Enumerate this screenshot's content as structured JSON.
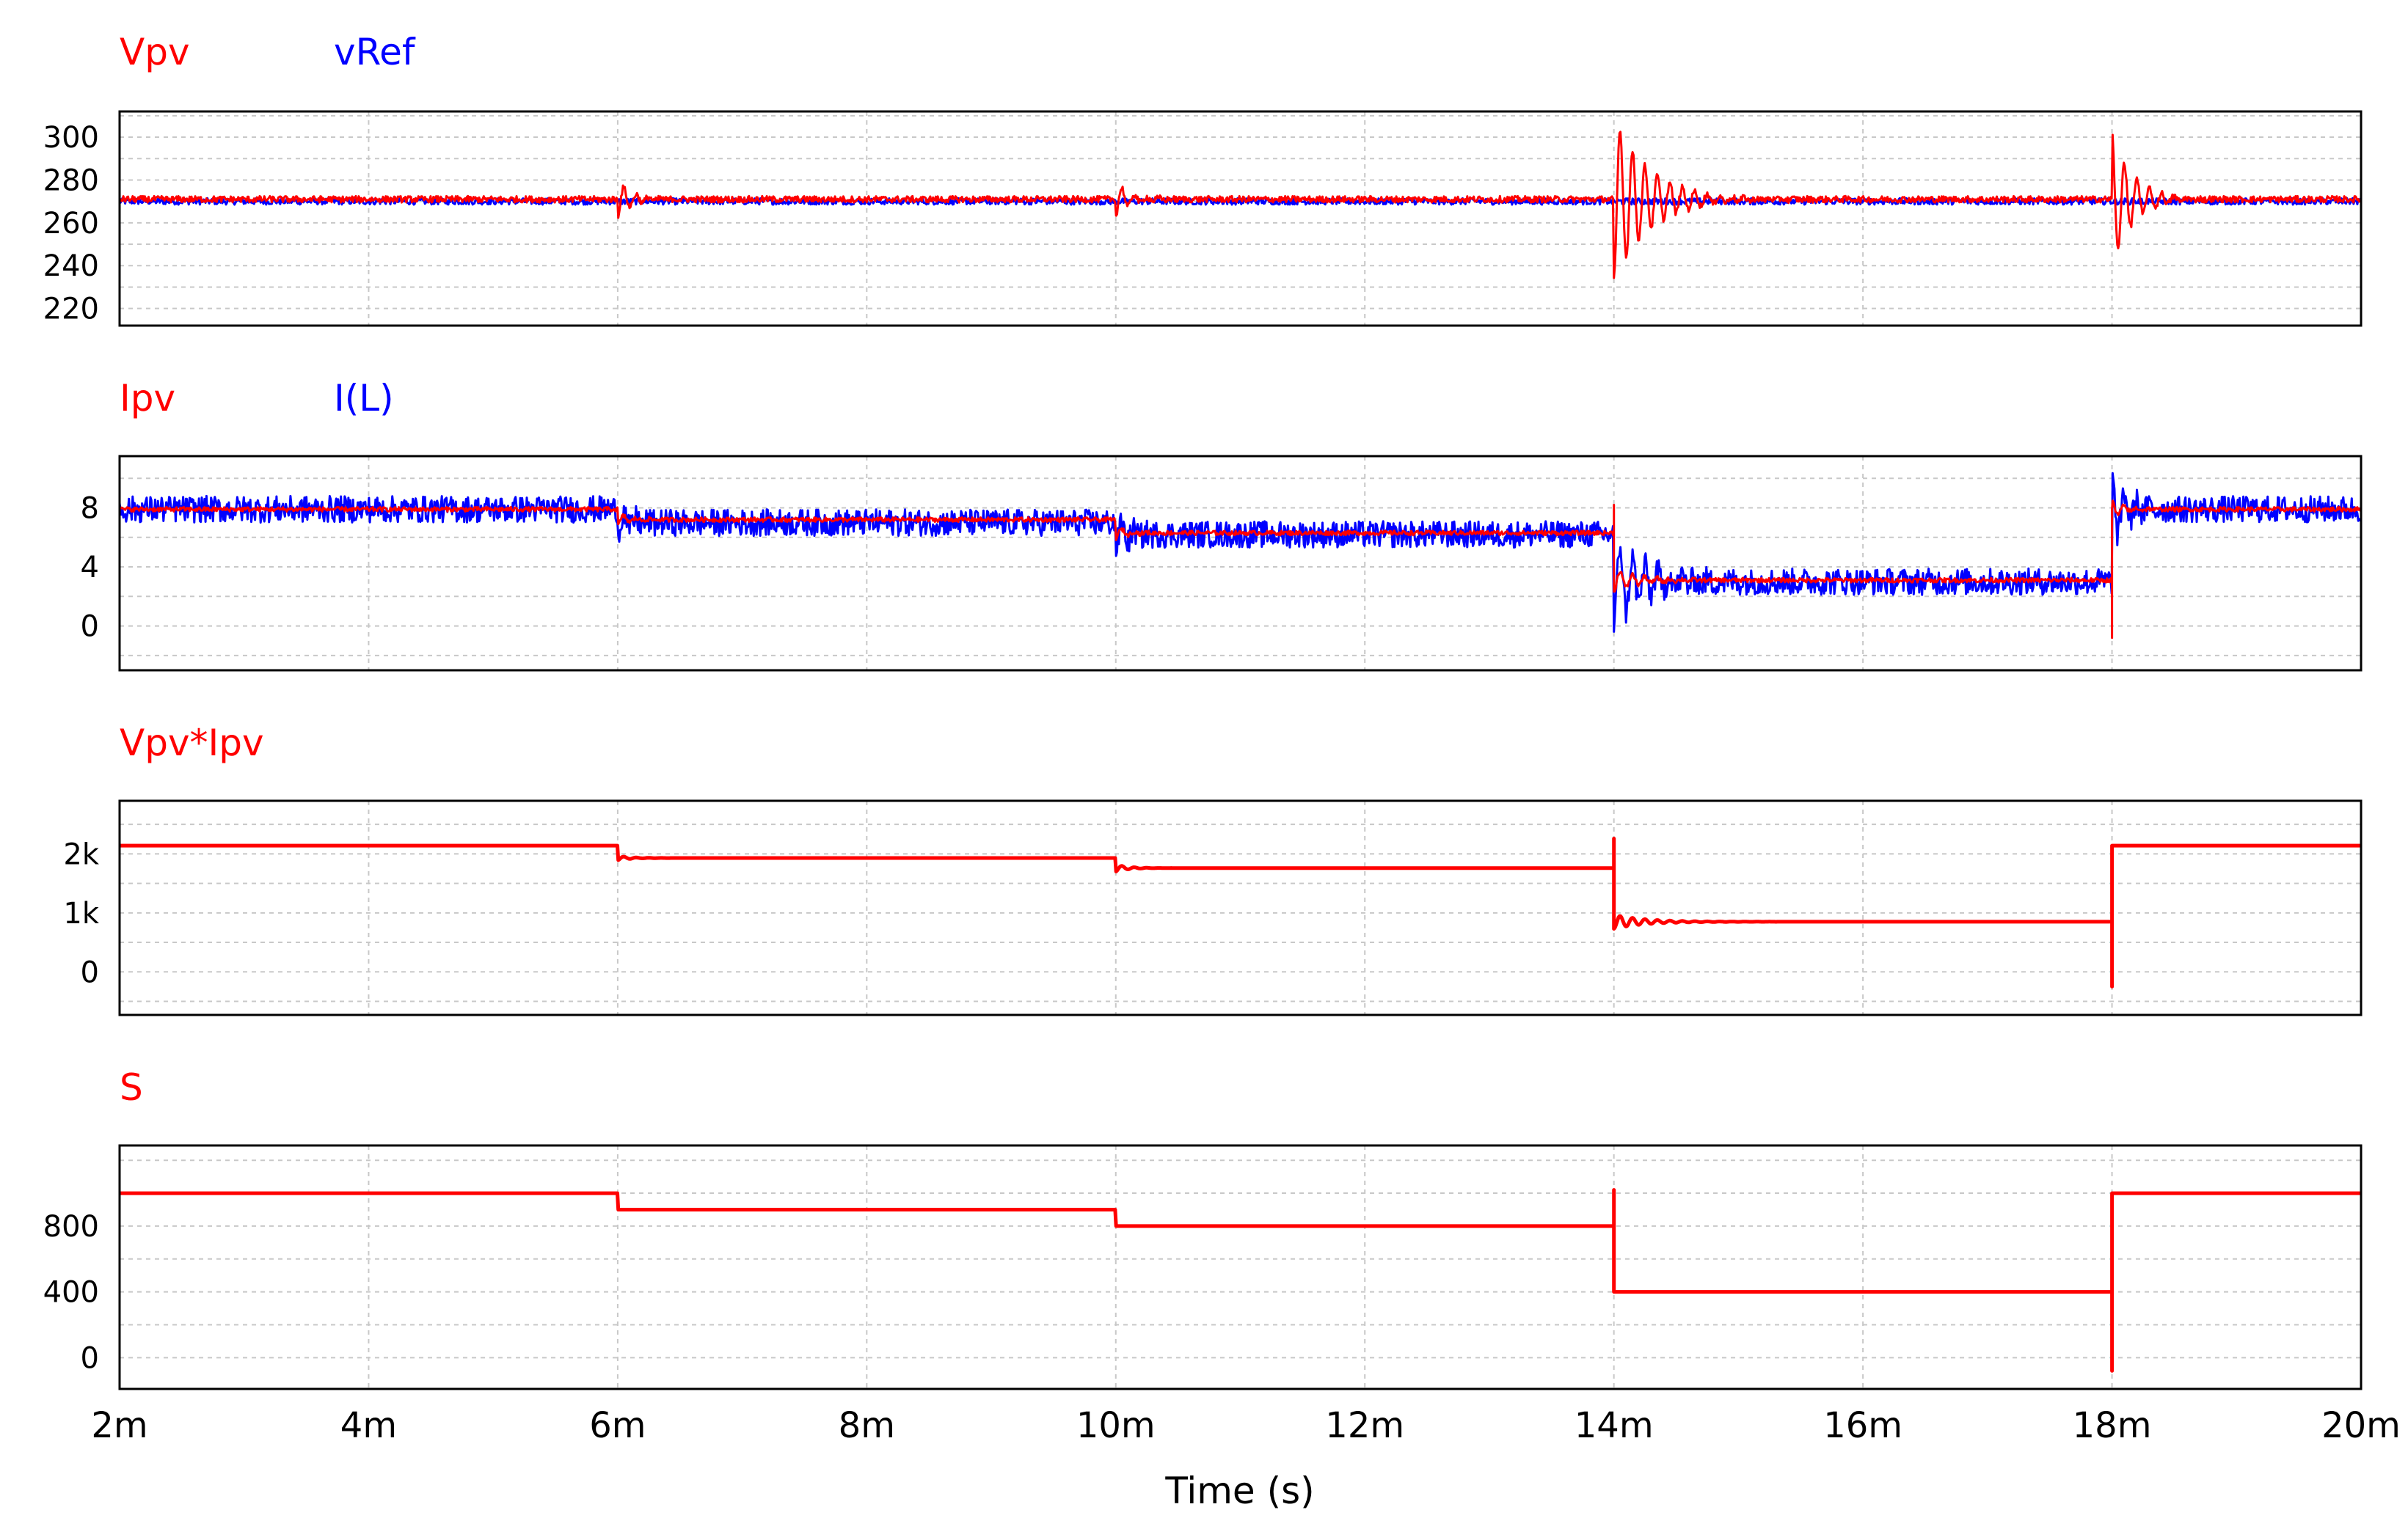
{
  "chart_data": {
    "type": "line",
    "xlabel": "Time (s)",
    "xlim": [
      0.002,
      0.02
    ],
    "xticks": [
      {
        "v": 0.002,
        "label": "2m"
      },
      {
        "v": 0.004,
        "label": "4m"
      },
      {
        "v": 0.006,
        "label": "6m"
      },
      {
        "v": 0.008,
        "label": "8m"
      },
      {
        "v": 0.01,
        "label": "10m"
      },
      {
        "v": 0.012,
        "label": "12m"
      },
      {
        "v": 0.014,
        "label": "14m"
      },
      {
        "v": 0.016,
        "label": "16m"
      },
      {
        "v": 0.018,
        "label": "18m"
      },
      {
        "v": 0.02,
        "label": "20m"
      }
    ],
    "grid": true,
    "panels": [
      {
        "id": "voltage",
        "legend": [
          {
            "name": "Vpv",
            "color": "#ff0000"
          },
          {
            "name": "vRef",
            "color": "#0000ff"
          }
        ],
        "ylim": [
          212,
          312
        ],
        "yticks": [
          {
            "v": 300,
            "label": "300"
          },
          {
            "v": 280,
            "label": "280"
          },
          {
            "v": 260,
            "label": "260"
          },
          {
            "v": 240,
            "label": "240"
          },
          {
            "v": 220,
            "label": "220"
          }
        ],
        "series": [
          {
            "name": "vRef",
            "color": "#0000ff",
            "style": "ripple",
            "amp": 1.5,
            "base": [
              [
                0.002,
                270
              ],
              [
                0.02,
                270
              ]
            ]
          },
          {
            "name": "Vpv",
            "color": "#ff0000",
            "style": "ripple",
            "amp": 1.5,
            "base": [
              [
                0.002,
                271
              ],
              [
                0.02,
                271
              ]
            ],
            "transients": [
              {
                "t": 0.006,
                "amp": -8,
                "tau": 0.00012,
                "period": 0.0001
              },
              {
                "t": 0.01,
                "amp": -8,
                "tau": 0.00012,
                "period": 0.0001
              },
              {
                "t": 0.014,
                "amp": -38,
                "tau": 0.00028,
                "period": 0.0001
              },
              {
                "t": 0.018,
                "amp": 32,
                "tau": 0.00016,
                "period": 0.0001
              }
            ]
          }
        ]
      },
      {
        "id": "current",
        "legend": [
          {
            "name": "Ipv",
            "color": "#ff0000"
          },
          {
            "name": "I(L)",
            "color": "#0000ff"
          }
        ],
        "ylim": [
          -3,
          11.5
        ],
        "yticks": [
          {
            "v": 8,
            "label": "8"
          },
          {
            "v": 4,
            "label": "4"
          },
          {
            "v": 0,
            "label": "0"
          }
        ],
        "series": [
          {
            "name": "I(L)",
            "color": "#0000ff",
            "style": "ripple",
            "amp": 0.9,
            "base": [
              [
                0.002,
                7.9
              ],
              [
                0.006,
                7.9
              ],
              [
                0.006,
                7.0
              ],
              [
                0.01,
                7.0
              ],
              [
                0.01,
                6.2
              ],
              [
                0.014,
                6.2
              ],
              [
                0.014,
                3.0
              ],
              [
                0.018,
                3.0
              ],
              [
                0.018,
                7.9
              ],
              [
                0.02,
                7.9
              ]
            ],
            "transients": [
              {
                "t": 0.006,
                "amp": -1.2,
                "tau": 0.0001,
                "period": 0.0001
              },
              {
                "t": 0.01,
                "amp": -1.2,
                "tau": 0.0001,
                "period": 0.0001
              },
              {
                "t": 0.014,
                "amp": -3.0,
                "tau": 0.00025,
                "period": 0.0001
              },
              {
                "t": 0.018,
                "amp": 2.6,
                "tau": 0.00012,
                "period": 0.0001
              }
            ]
          },
          {
            "name": "Ipv",
            "color": "#ff0000",
            "style": "ripple",
            "amp": 0.15,
            "base": [
              [
                0.002,
                7.9
              ],
              [
                0.006,
                7.9
              ],
              [
                0.006,
                7.2
              ],
              [
                0.01,
                7.2
              ],
              [
                0.01,
                6.3
              ],
              [
                0.014,
                6.3
              ],
              [
                0.014,
                3.1
              ],
              [
                0.018,
                3.1
              ],
              [
                0.018,
                7.9
              ],
              [
                0.02,
                7.9
              ]
            ],
            "transients": [
              {
                "t": 0.006,
                "amp": -0.4,
                "tau": 0.0001,
                "period": 0.0001
              },
              {
                "t": 0.01,
                "amp": -0.4,
                "tau": 0.0001,
                "period": 0.0001
              },
              {
                "t": 0.014,
                "amp": -0.8,
                "tau": 0.0002,
                "period": 0.0001
              },
              {
                "t": 0.018,
                "amp": 0.6,
                "tau": 0.0001,
                "period": 0.0001
              }
            ],
            "spikes": [
              {
                "t": 0.014,
                "v": 8.2
              },
              {
                "t": 0.018,
                "v": -0.8
              }
            ]
          }
        ]
      },
      {
        "id": "power",
        "legend": [
          {
            "name": "Vpv*Ipv",
            "color": "#ff0000"
          }
        ],
        "ylim": [
          -730,
          2900
        ],
        "yticks": [
          {
            "v": 2000,
            "label": "2k"
          },
          {
            "v": 1000,
            "label": "1k"
          },
          {
            "v": 0,
            "label": "0"
          }
        ],
        "series": [
          {
            "name": "Vpv*Ipv",
            "color": "#ff0000",
            "style": "step",
            "base": [
              [
                0.002,
                2140
              ],
              [
                0.006,
                2140
              ],
              [
                0.006,
                1930
              ],
              [
                0.01,
                1930
              ],
              [
                0.01,
                1760
              ],
              [
                0.014,
                1760
              ],
              [
                0.014,
                850
              ],
              [
                0.018,
                850
              ],
              [
                0.018,
                2140
              ],
              [
                0.02,
                2140
              ]
            ],
            "transients": [
              {
                "t": 0.006,
                "amp": -40,
                "tau": 0.0001,
                "period": 0.0001
              },
              {
                "t": 0.01,
                "amp": -60,
                "tau": 0.0001,
                "period": 0.0001
              },
              {
                "t": 0.014,
                "amp": -120,
                "tau": 0.00025,
                "period": 0.0001
              },
              {
                "t": 0.018,
                "amp": 0,
                "tau": 0.0001,
                "period": 0.0001
              }
            ],
            "spikes": [
              {
                "t": 0.014,
                "v": 2260
              },
              {
                "t": 0.018,
                "v": -250
              }
            ]
          }
        ]
      },
      {
        "id": "irradiance",
        "legend": [
          {
            "name": "S",
            "color": "#ff0000"
          }
        ],
        "ylim": [
          -190,
          1290
        ],
        "yticks": [
          {
            "v": 800,
            "label": "800"
          },
          {
            "v": 400,
            "label": "400"
          },
          {
            "v": 0,
            "label": "0"
          }
        ],
        "series": [
          {
            "name": "S",
            "color": "#ff0000",
            "style": "step",
            "base": [
              [
                0.002,
                1000
              ],
              [
                0.006,
                1000
              ],
              [
                0.006,
                900
              ],
              [
                0.01,
                900
              ],
              [
                0.01,
                800
              ],
              [
                0.014,
                800
              ],
              [
                0.014,
                400
              ],
              [
                0.018,
                400
              ],
              [
                0.018,
                1000
              ],
              [
                0.02,
                1000
              ]
            ],
            "spikes": [
              {
                "t": 0.014,
                "v": 1020
              },
              {
                "t": 0.018,
                "v": -80
              }
            ]
          }
        ]
      }
    ]
  }
}
